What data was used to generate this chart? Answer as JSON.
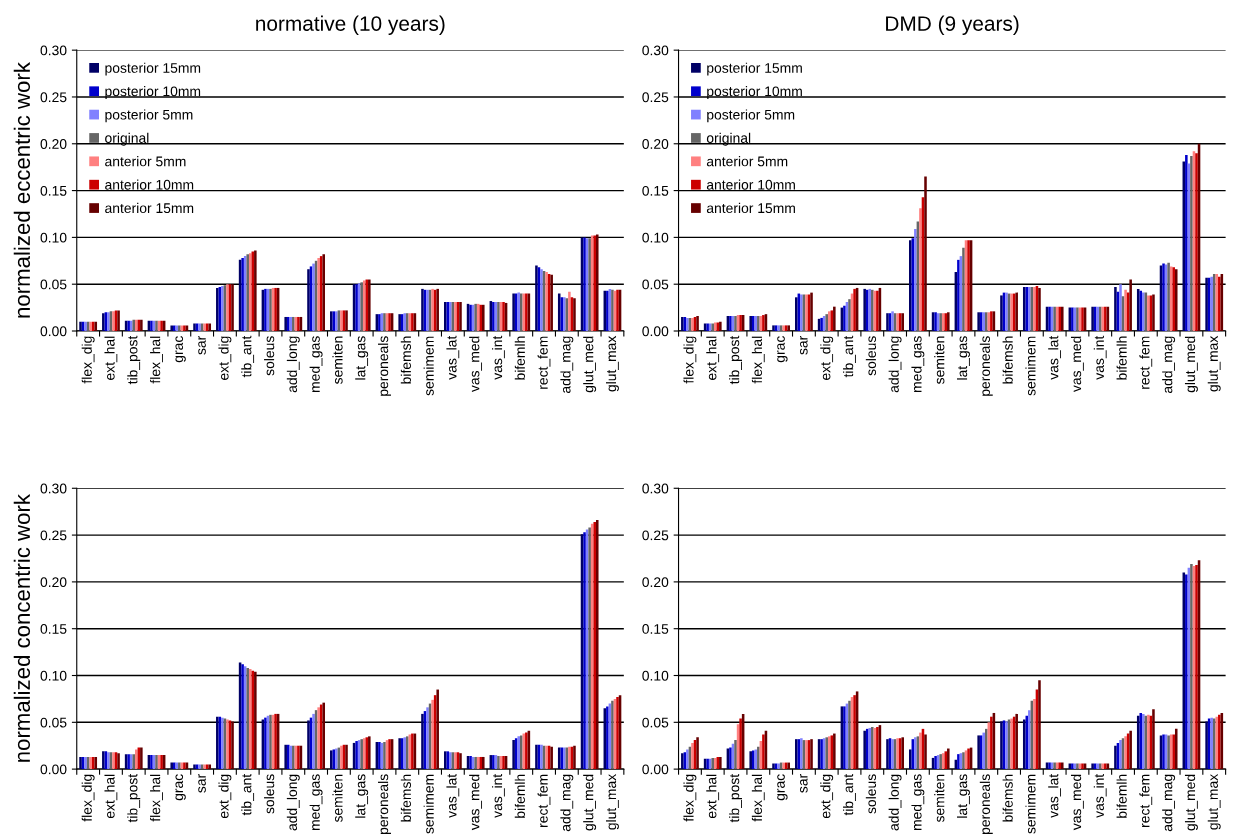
{
  "chart_data": [
    {
      "type": "bar",
      "title": "normative (10 years)",
      "ylabel": "normalized eccentric work",
      "legend": "top left",
      "grid": "y",
      "categories": [
        "flex_dig",
        "ext_hal",
        "tib_post",
        "flex_hal",
        "grac",
        "sar",
        "ext_dig",
        "tib_ant",
        "soleus",
        "add_long",
        "med_gas",
        "semiten",
        "lat_gas",
        "peroneals",
        "bifemsh",
        "semimem",
        "vas_lat",
        "vas_med",
        "vas_int",
        "bifemlh",
        "rect_fem",
        "add_mag",
        "glut_med",
        "glut_max"
      ],
      "ylim": [
        0,
        0.3
      ],
      "yticks": [
        {
          "value": 0,
          "label": "0.00"
        },
        {
          "value": 0.05,
          "label": "0.05"
        },
        {
          "value": 0.1,
          "label": "0.10"
        },
        {
          "value": 0.15,
          "label": "0.15"
        },
        {
          "value": 0.2,
          "label": "0.20"
        },
        {
          "value": 0.25,
          "label": "0.25"
        },
        {
          "value": 0.3,
          "label": "0.30"
        }
      ],
      "series": [
        {
          "name": "posterior 15mm",
          "color": "#000066",
          "values": [
            0.01,
            0.019,
            0.011,
            0.011,
            0.006,
            0.008,
            0.046,
            0.076,
            0.044,
            0.015,
            0.066,
            0.021,
            0.05,
            0.018,
            0.018,
            0.045,
            0.031,
            0.029,
            0.032,
            0.04,
            0.07,
            0.04,
            0.1,
            0.043
          ]
        },
        {
          "name": "posterior 10mm",
          "color": "#0000cc",
          "values": [
            0.01,
            0.02,
            0.011,
            0.011,
            0.006,
            0.008,
            0.047,
            0.078,
            0.045,
            0.015,
            0.069,
            0.021,
            0.05,
            0.018,
            0.018,
            0.044,
            0.031,
            0.028,
            0.031,
            0.04,
            0.068,
            0.036,
            0.1,
            0.043
          ]
        },
        {
          "name": "posterior 5mm",
          "color": "#8080ff",
          "values": [
            0.01,
            0.02,
            0.011,
            0.011,
            0.006,
            0.008,
            0.048,
            0.08,
            0.045,
            0.015,
            0.072,
            0.021,
            0.051,
            0.019,
            0.019,
            0.044,
            0.031,
            0.028,
            0.031,
            0.041,
            0.066,
            0.036,
            0.099,
            0.045
          ]
        },
        {
          "name": "original",
          "color": "#666666",
          "values": [
            0.01,
            0.021,
            0.012,
            0.011,
            0.006,
            0.008,
            0.049,
            0.082,
            0.045,
            0.015,
            0.075,
            0.022,
            0.052,
            0.019,
            0.019,
            0.044,
            0.031,
            0.029,
            0.031,
            0.04,
            0.064,
            0.035,
            0.099,
            0.044
          ]
        },
        {
          "name": "anterior 5mm",
          "color": "#ff8080",
          "values": [
            0.01,
            0.021,
            0.012,
            0.011,
            0.006,
            0.008,
            0.05,
            0.083,
            0.046,
            0.015,
            0.078,
            0.022,
            0.054,
            0.019,
            0.019,
            0.045,
            0.031,
            0.029,
            0.031,
            0.04,
            0.063,
            0.042,
            0.102,
            0.043
          ]
        },
        {
          "name": "anterior 10mm",
          "color": "#cc0000",
          "values": [
            0.01,
            0.022,
            0.012,
            0.011,
            0.006,
            0.008,
            0.05,
            0.085,
            0.046,
            0.015,
            0.08,
            0.022,
            0.055,
            0.019,
            0.019,
            0.044,
            0.031,
            0.028,
            0.031,
            0.04,
            0.061,
            0.036,
            0.102,
            0.044
          ]
        },
        {
          "name": "anterior 15mm",
          "color": "#660000",
          "values": [
            0.01,
            0.022,
            0.012,
            0.011,
            0.006,
            0.008,
            0.05,
            0.086,
            0.046,
            0.015,
            0.082,
            0.022,
            0.055,
            0.019,
            0.019,
            0.045,
            0.031,
            0.028,
            0.03,
            0.04,
            0.06,
            0.035,
            0.103,
            0.044
          ]
        }
      ]
    },
    {
      "type": "bar",
      "title": "DMD (9 years)",
      "legend": "top left",
      "grid": "y",
      "categories": [
        "flex_dig",
        "ext_hal",
        "tib_post",
        "flex_hal",
        "grac",
        "sar",
        "ext_dig",
        "tib_ant",
        "soleus",
        "add_long",
        "med_gas",
        "semiten",
        "lat_gas",
        "peroneals",
        "bifemsh",
        "semimem",
        "vas_lat",
        "vas_med",
        "vas_int",
        "bifemlh",
        "rect_fem",
        "add_mag",
        "glut_med",
        "glut_max"
      ],
      "ylim": [
        0,
        0.3
      ],
      "yticks": [
        {
          "value": 0,
          "label": "0.00"
        },
        {
          "value": 0.05,
          "label": "0.05"
        },
        {
          "value": 0.1,
          "label": "0.10"
        },
        {
          "value": 0.15,
          "label": "0.15"
        },
        {
          "value": 0.2,
          "label": "0.20"
        },
        {
          "value": 0.25,
          "label": "0.25"
        },
        {
          "value": 0.3,
          "label": "0.30"
        }
      ],
      "series": [
        {
          "name": "posterior 15mm",
          "color": "#000066",
          "values": [
            0.015,
            0.008,
            0.016,
            0.016,
            0.006,
            0.036,
            0.013,
            0.025,
            0.045,
            0.019,
            0.097,
            0.02,
            0.063,
            0.02,
            0.038,
            0.047,
            0.026,
            0.025,
            0.026,
            0.047,
            0.045,
            0.07,
            0.181,
            0.057
          ]
        },
        {
          "name": "posterior 10mm",
          "color": "#0000cc",
          "values": [
            0.015,
            0.008,
            0.016,
            0.016,
            0.006,
            0.04,
            0.014,
            0.027,
            0.044,
            0.019,
            0.099,
            0.02,
            0.076,
            0.02,
            0.041,
            0.047,
            0.026,
            0.025,
            0.026,
            0.042,
            0.043,
            0.072,
            0.188,
            0.057
          ]
        },
        {
          "name": "posterior 5mm",
          "color": "#8080ff",
          "values": [
            0.014,
            0.008,
            0.016,
            0.016,
            0.006,
            0.039,
            0.016,
            0.031,
            0.045,
            0.021,
            0.109,
            0.019,
            0.08,
            0.02,
            0.041,
            0.047,
            0.026,
            0.025,
            0.026,
            0.05,
            0.041,
            0.071,
            0.179,
            0.058
          ]
        },
        {
          "name": "original",
          "color": "#666666",
          "values": [
            0.014,
            0.008,
            0.016,
            0.016,
            0.006,
            0.039,
            0.018,
            0.034,
            0.044,
            0.019,
            0.117,
            0.019,
            0.089,
            0.02,
            0.04,
            0.047,
            0.026,
            0.025,
            0.026,
            0.037,
            0.041,
            0.073,
            0.187,
            0.061
          ]
        },
        {
          "name": "anterior 5mm",
          "color": "#ff8080",
          "values": [
            0.014,
            0.009,
            0.017,
            0.016,
            0.006,
            0.039,
            0.021,
            0.04,
            0.043,
            0.019,
            0.131,
            0.019,
            0.097,
            0.02,
            0.04,
            0.047,
            0.026,
            0.025,
            0.026,
            0.044,
            0.038,
            0.069,
            0.192,
            0.061
          ]
        },
        {
          "name": "anterior 10mm",
          "color": "#cc0000",
          "values": [
            0.015,
            0.009,
            0.017,
            0.017,
            0.006,
            0.039,
            0.022,
            0.045,
            0.043,
            0.019,
            0.143,
            0.019,
            0.097,
            0.021,
            0.04,
            0.048,
            0.026,
            0.025,
            0.026,
            0.041,
            0.038,
            0.068,
            0.19,
            0.058
          ]
        },
        {
          "name": "anterior 15mm",
          "color": "#660000",
          "values": [
            0.016,
            0.01,
            0.017,
            0.018,
            0.006,
            0.041,
            0.026,
            0.046,
            0.046,
            0.019,
            0.165,
            0.02,
            0.097,
            0.021,
            0.041,
            0.046,
            0.026,
            0.025,
            0.026,
            0.055,
            0.039,
            0.066,
            0.2,
            0.061
          ]
        }
      ]
    },
    {
      "type": "bar",
      "ylabel": "normalized concentric work",
      "grid": "y",
      "categories": [
        "flex_dig",
        "ext_hal",
        "tib_post",
        "flex_hal",
        "grac",
        "sar",
        "ext_dig",
        "tib_ant",
        "soleus",
        "add_long",
        "med_gas",
        "semiten",
        "lat_gas",
        "peroneals",
        "bifemsh",
        "semimem",
        "vas_lat",
        "vas_med",
        "vas_int",
        "bifemlh",
        "rect_fem",
        "add_mag",
        "glut_med",
        "glut_max"
      ],
      "ylim": [
        0,
        0.3
      ],
      "yticks": [
        {
          "value": 0,
          "label": "0.00"
        },
        {
          "value": 0.05,
          "label": "0.05"
        },
        {
          "value": 0.1,
          "label": "0.10"
        },
        {
          "value": 0.15,
          "label": "0.15"
        },
        {
          "value": 0.2,
          "label": "0.20"
        },
        {
          "value": 0.25,
          "label": "0.25"
        },
        {
          "value": 0.3,
          "label": "0.30"
        }
      ],
      "series": [
        {
          "color": "#000066",
          "values": [
            0.013,
            0.019,
            0.016,
            0.015,
            0.007,
            0.005,
            0.056,
            0.114,
            0.053,
            0.026,
            0.052,
            0.02,
            0.028,
            0.029,
            0.033,
            0.059,
            0.019,
            0.014,
            0.015,
            0.031,
            0.026,
            0.023,
            0.251,
            0.065
          ]
        },
        {
          "color": "#0000cc",
          "values": [
            0.013,
            0.019,
            0.016,
            0.015,
            0.007,
            0.005,
            0.056,
            0.112,
            0.055,
            0.026,
            0.055,
            0.021,
            0.03,
            0.029,
            0.033,
            0.062,
            0.019,
            0.014,
            0.015,
            0.033,
            0.026,
            0.023,
            0.253,
            0.067
          ]
        },
        {
          "color": "#8080ff",
          "values": [
            0.013,
            0.018,
            0.016,
            0.015,
            0.007,
            0.005,
            0.055,
            0.11,
            0.057,
            0.025,
            0.059,
            0.022,
            0.031,
            0.028,
            0.034,
            0.066,
            0.018,
            0.013,
            0.015,
            0.035,
            0.026,
            0.023,
            0.256,
            0.07
          ]
        },
        {
          "color": "#666666",
          "values": [
            0.013,
            0.018,
            0.016,
            0.015,
            0.007,
            0.005,
            0.054,
            0.108,
            0.058,
            0.025,
            0.063,
            0.023,
            0.032,
            0.029,
            0.035,
            0.07,
            0.018,
            0.013,
            0.014,
            0.036,
            0.025,
            0.023,
            0.258,
            0.073
          ]
        },
        {
          "color": "#ff8080",
          "values": [
            0.013,
            0.018,
            0.021,
            0.015,
            0.007,
            0.005,
            0.053,
            0.107,
            0.058,
            0.025,
            0.066,
            0.025,
            0.033,
            0.031,
            0.037,
            0.074,
            0.018,
            0.013,
            0.014,
            0.038,
            0.025,
            0.024,
            0.262,
            0.075
          ]
        },
        {
          "color": "#cc0000",
          "values": [
            0.013,
            0.018,
            0.023,
            0.015,
            0.007,
            0.005,
            0.052,
            0.105,
            0.059,
            0.025,
            0.069,
            0.026,
            0.034,
            0.032,
            0.038,
            0.079,
            0.018,
            0.013,
            0.014,
            0.039,
            0.025,
            0.024,
            0.264,
            0.077
          ]
        },
        {
          "color": "#660000",
          "values": [
            0.013,
            0.017,
            0.023,
            0.015,
            0.007,
            0.005,
            0.051,
            0.104,
            0.059,
            0.025,
            0.071,
            0.026,
            0.035,
            0.032,
            0.038,
            0.085,
            0.017,
            0.013,
            0.014,
            0.041,
            0.024,
            0.025,
            0.266,
            0.079
          ]
        }
      ]
    },
    {
      "type": "bar",
      "grid": "y",
      "categories": [
        "flex_dig",
        "ext_hal",
        "tib_post",
        "flex_hal",
        "grac",
        "sar",
        "ext_dig",
        "tib_ant",
        "soleus",
        "add_long",
        "med_gas",
        "semiten",
        "lat_gas",
        "peroneals",
        "bifemsh",
        "semimem",
        "vas_lat",
        "vas_med",
        "vas_int",
        "bifemlh",
        "rect_fem",
        "add_mag",
        "glut_med",
        "glut_max"
      ],
      "ylim": [
        0,
        0.3
      ],
      "yticks": [
        {
          "value": 0,
          "label": "0.00"
        },
        {
          "value": 0.05,
          "label": "0.05"
        },
        {
          "value": 0.1,
          "label": "0.10"
        },
        {
          "value": 0.15,
          "label": "0.15"
        },
        {
          "value": 0.2,
          "label": "0.20"
        },
        {
          "value": 0.25,
          "label": "0.25"
        },
        {
          "value": 0.3,
          "label": "0.30"
        }
      ],
      "series": [
        {
          "color": "#000066",
          "values": [
            0.017,
            0.011,
            0.022,
            0.019,
            0.006,
            0.032,
            0.032,
            0.067,
            0.041,
            0.032,
            0.021,
            0.012,
            0.01,
            0.036,
            0.051,
            0.053,
            0.007,
            0.006,
            0.006,
            0.025,
            0.057,
            0.036,
            0.21,
            0.051
          ]
        },
        {
          "color": "#0000cc",
          "values": [
            0.018,
            0.011,
            0.023,
            0.02,
            0.006,
            0.032,
            0.032,
            0.067,
            0.043,
            0.033,
            0.032,
            0.014,
            0.016,
            0.036,
            0.052,
            0.057,
            0.007,
            0.006,
            0.006,
            0.028,
            0.06,
            0.037,
            0.208,
            0.054
          ]
        },
        {
          "color": "#8080ff",
          "values": [
            0.021,
            0.011,
            0.027,
            0.021,
            0.006,
            0.033,
            0.033,
            0.07,
            0.044,
            0.032,
            0.034,
            0.015,
            0.017,
            0.039,
            0.051,
            0.063,
            0.007,
            0.006,
            0.006,
            0.031,
            0.059,
            0.037,
            0.215,
            0.055
          ]
        },
        {
          "color": "#666666",
          "values": [
            0.024,
            0.012,
            0.031,
            0.024,
            0.007,
            0.031,
            0.034,
            0.073,
            0.045,
            0.032,
            0.035,
            0.016,
            0.018,
            0.043,
            0.053,
            0.073,
            0.007,
            0.006,
            0.006,
            0.033,
            0.057,
            0.036,
            0.219,
            0.054
          ]
        },
        {
          "color": "#ff8080",
          "values": [
            0.028,
            0.012,
            0.048,
            0.03,
            0.007,
            0.031,
            0.035,
            0.077,
            0.044,
            0.033,
            0.039,
            0.017,
            0.02,
            0.05,
            0.054,
            0.075,
            0.007,
            0.006,
            0.006,
            0.035,
            0.058,
            0.037,
            0.217,
            0.056
          ]
        },
        {
          "color": "#cc0000",
          "values": [
            0.031,
            0.013,
            0.054,
            0.037,
            0.007,
            0.031,
            0.036,
            0.079,
            0.045,
            0.033,
            0.043,
            0.019,
            0.022,
            0.056,
            0.056,
            0.085,
            0.007,
            0.006,
            0.006,
            0.038,
            0.057,
            0.037,
            0.218,
            0.058
          ]
        },
        {
          "color": "#660000",
          "values": [
            0.034,
            0.013,
            0.059,
            0.041,
            0.007,
            0.032,
            0.038,
            0.083,
            0.047,
            0.034,
            0.037,
            0.022,
            0.023,
            0.06,
            0.059,
            0.095,
            0.007,
            0.006,
            0.006,
            0.041,
            0.064,
            0.043,
            0.223,
            0.06
          ]
        }
      ]
    }
  ]
}
